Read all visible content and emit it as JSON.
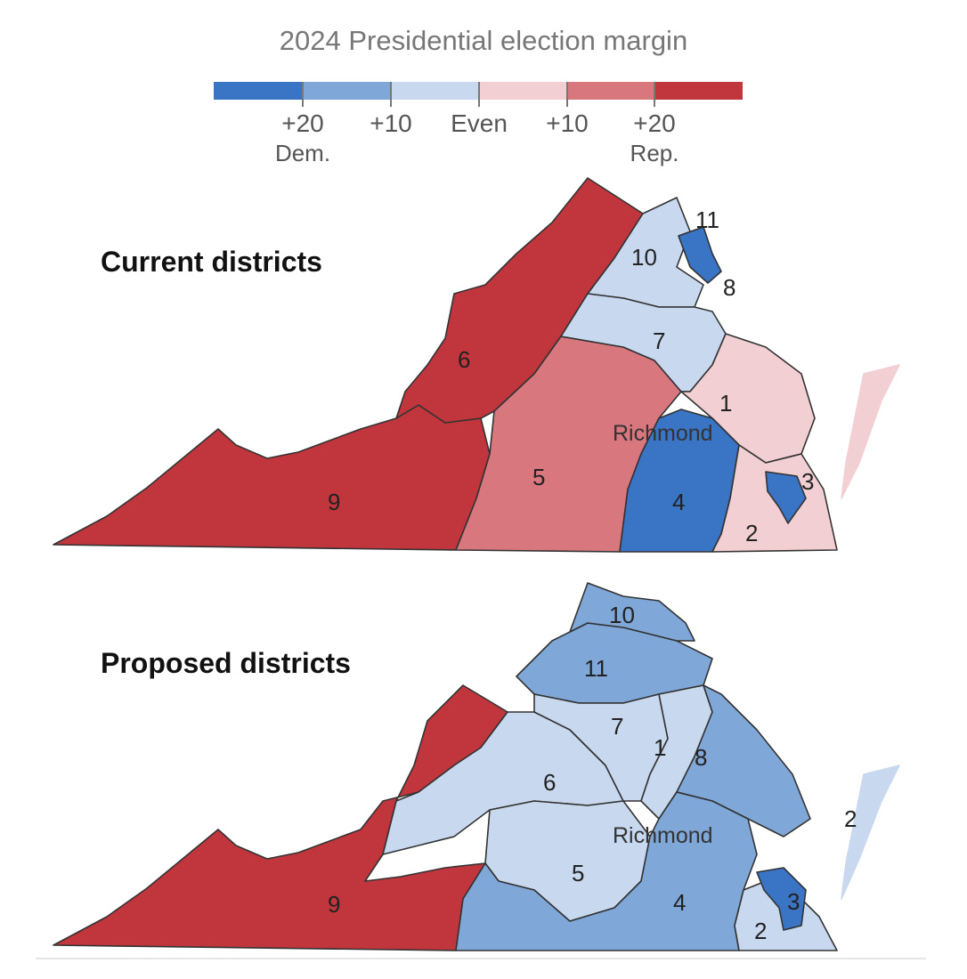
{
  "title": "2024 Presidential election margin",
  "legend": {
    "colors": [
      "#3a74c4",
      "#7fa7d8",
      "#c8d9ef",
      "#f2cfd3",
      "#d9777f",
      "#c0363c"
    ],
    "ticks": [
      "+20",
      "+10",
      "Even",
      "+10",
      "+20"
    ],
    "dem_label": "Dem.",
    "rep_label": "Rep."
  },
  "maps": [
    {
      "heading": "Current districts",
      "city_label": "Richmond",
      "districts": [
        {
          "id": "9",
          "margin": "Rep. +20 or more"
        },
        {
          "id": "6",
          "margin": "Rep. +20 or more"
        },
        {
          "id": "5",
          "margin": "Rep. +10 to +20"
        },
        {
          "id": "1",
          "margin": "Rep. 0 to +10"
        },
        {
          "id": "2",
          "margin": "Rep. 0 to +10"
        },
        {
          "id": "7",
          "margin": "Dem. 0 to +10"
        },
        {
          "id": "10",
          "margin": "Dem. 0 to +10"
        },
        {
          "id": "4",
          "margin": "Dem. +20 or more"
        },
        {
          "id": "3",
          "margin": "Dem. +20 or more"
        },
        {
          "id": "8",
          "margin": "Dem. +20 or more"
        },
        {
          "id": "11",
          "margin": "Dem. +20 or more"
        }
      ]
    },
    {
      "heading": "Proposed districts",
      "city_label": "Richmond",
      "districts": [
        {
          "id": "9",
          "margin": "Rep. +20 or more"
        },
        {
          "id": "6",
          "margin": "Dem. 0 to +10"
        },
        {
          "id": "5",
          "margin": "Dem. 0 to +10"
        },
        {
          "id": "7",
          "margin": "Dem. 0 to +10"
        },
        {
          "id": "1",
          "margin": "Dem. 0 to +10"
        },
        {
          "id": "2",
          "margin": "Dem. 0 to +10"
        },
        {
          "id": "4",
          "margin": "Dem. +10 to +20"
        },
        {
          "id": "8",
          "margin": "Dem. +10 to +20"
        },
        {
          "id": "10",
          "margin": "Dem. +10 to +20"
        },
        {
          "id": "11",
          "margin": "Dem. +10 to +20"
        },
        {
          "id": "3",
          "margin": "Dem. +20 or more"
        }
      ]
    }
  ]
}
